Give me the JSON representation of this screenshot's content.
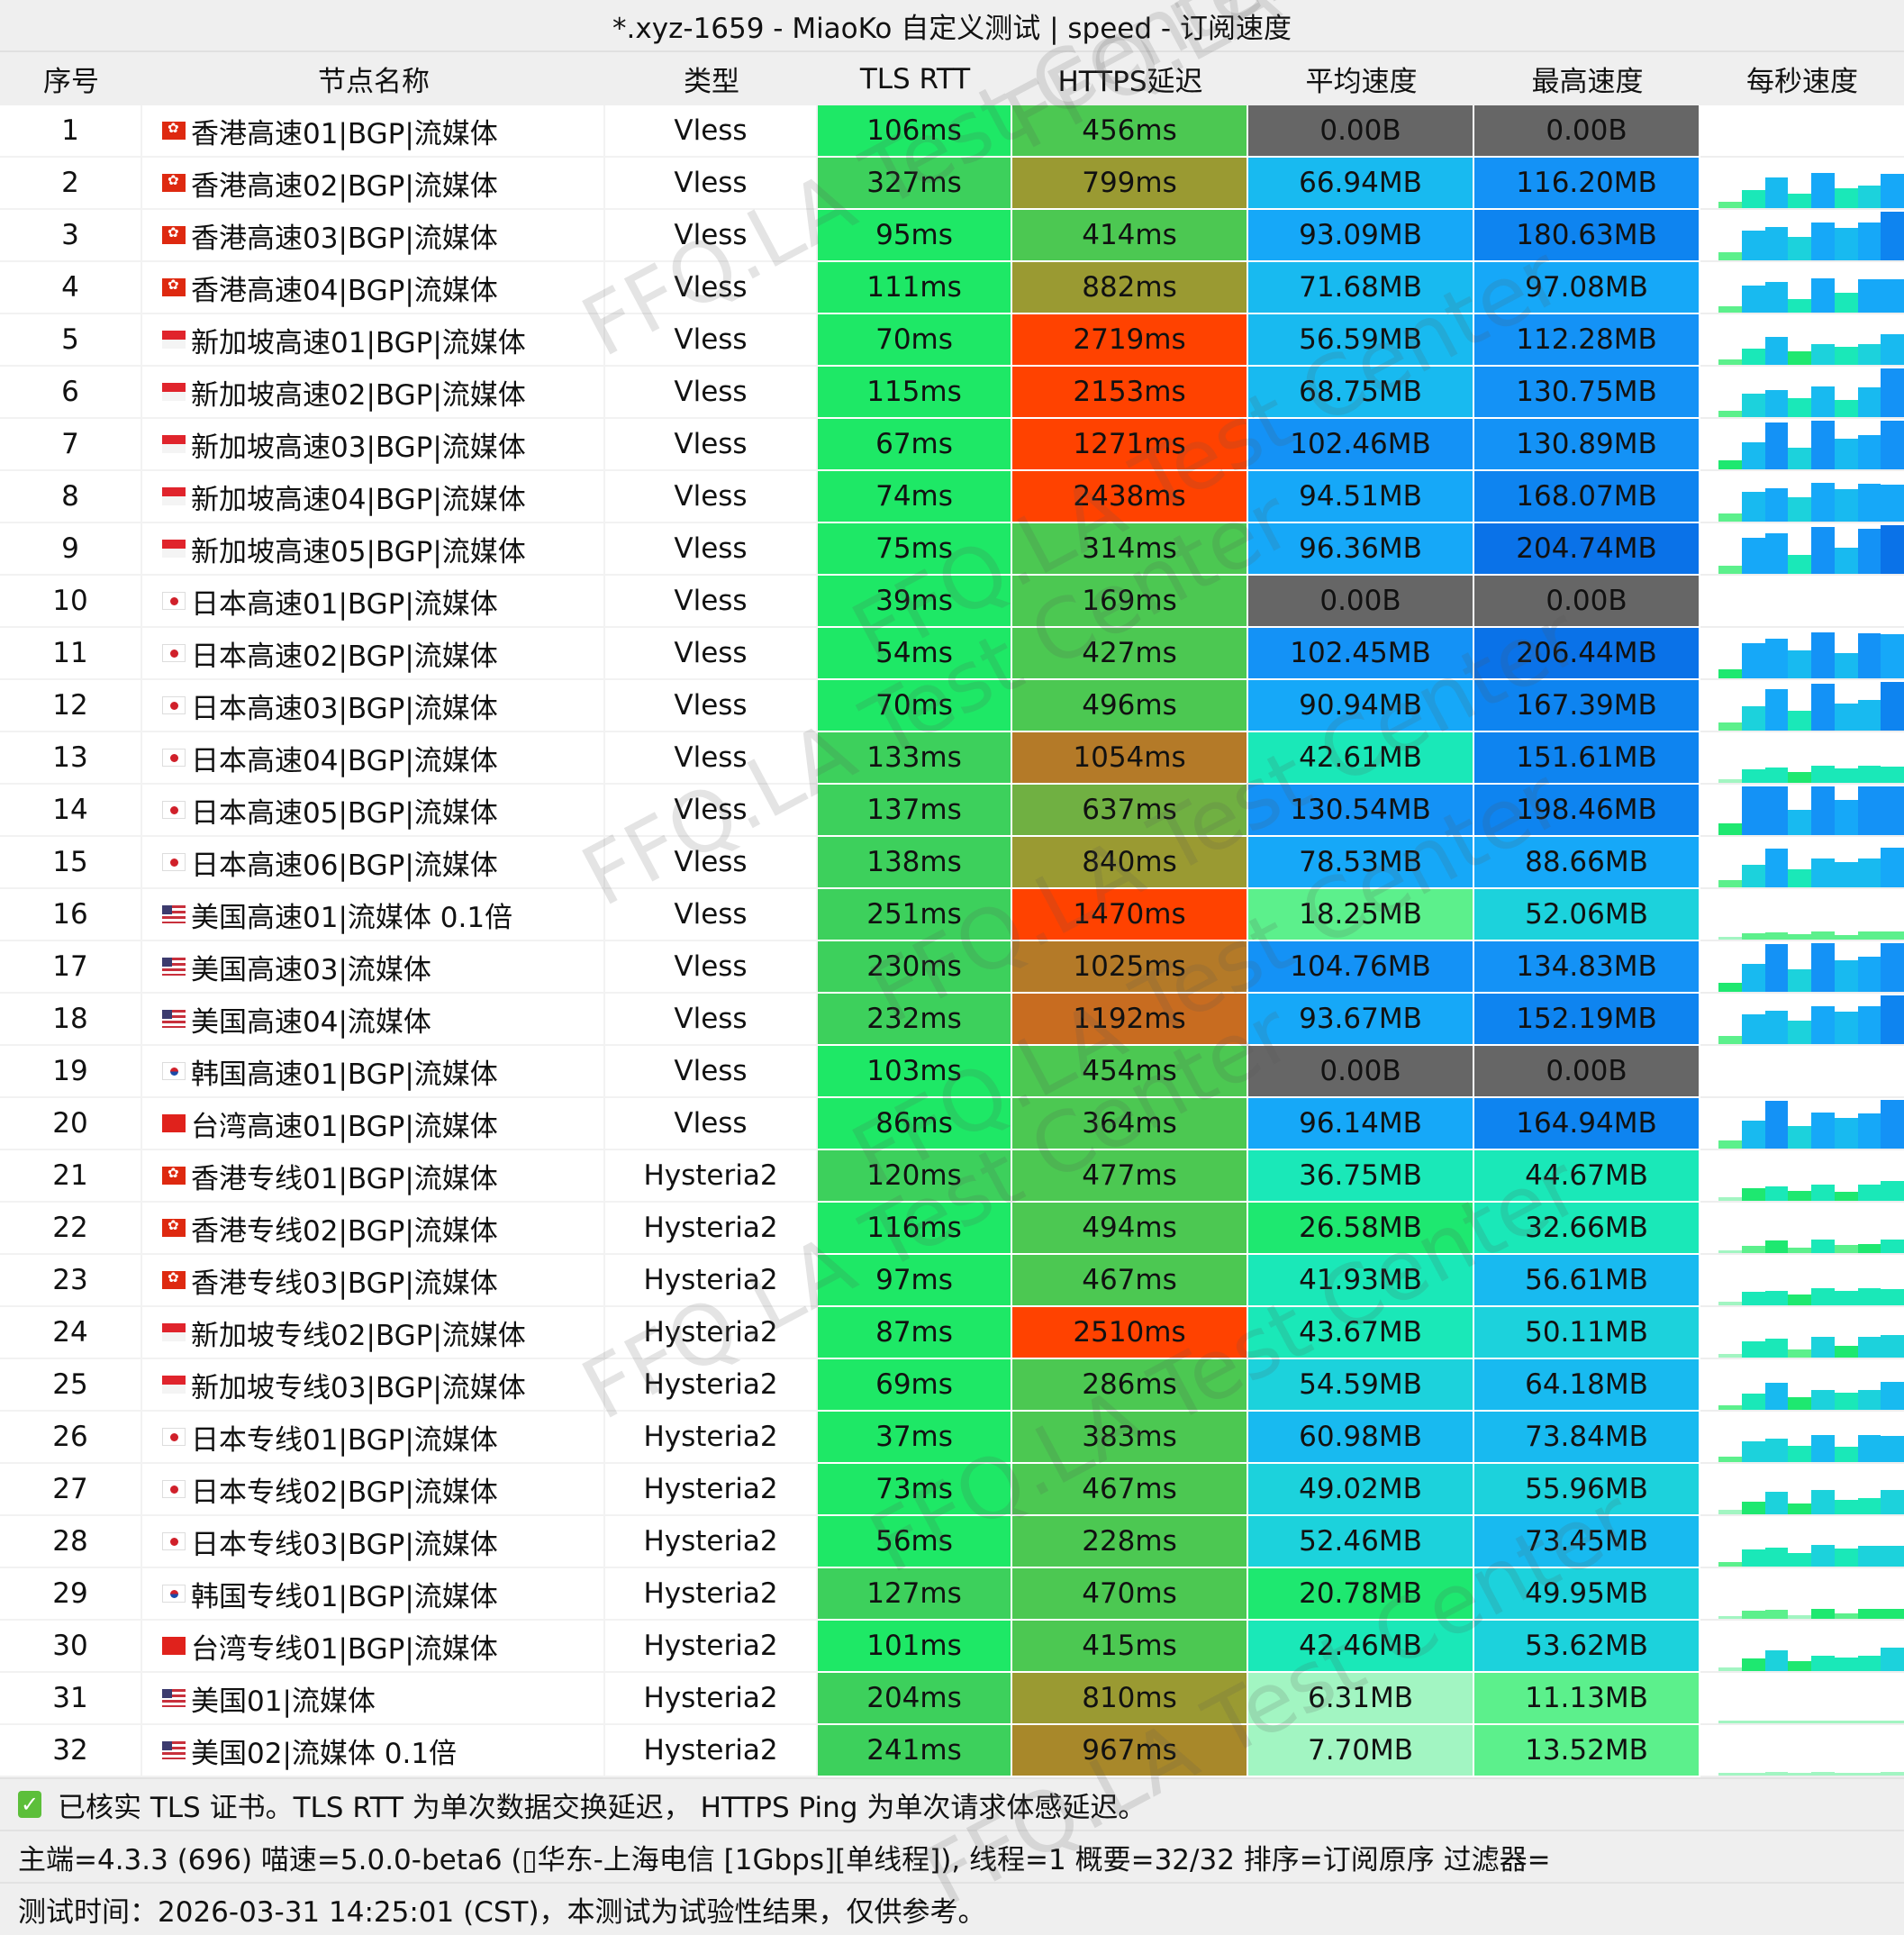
{
  "window": {
    "title": "*.xyz-1659 - MiaoKo 自定义测试 | speed - 订阅速度"
  },
  "columns": [
    "序号",
    "节点名称",
    "类型",
    "TLS RTT",
    "HTTPS延迟",
    "平均速度",
    "最高速度",
    "每秒速度"
  ],
  "rows": [
    {
      "id": "1",
      "flag": "hk",
      "name": "香港高速01|BGP|流媒体",
      "type": "Vless",
      "tls": "106ms",
      "https": "456ms",
      "avg": "0.00B",
      "max": "0.00B"
    },
    {
      "id": "2",
      "flag": "hk",
      "name": "香港高速02|BGP|流媒体",
      "type": "Vless",
      "tls": "327ms",
      "https": "799ms",
      "avg": "66.94MB",
      "max": "116.20MB"
    },
    {
      "id": "3",
      "flag": "hk",
      "name": "香港高速03|BGP|流媒体",
      "type": "Vless",
      "tls": "95ms",
      "https": "414ms",
      "avg": "93.09MB",
      "max": "180.63MB"
    },
    {
      "id": "4",
      "flag": "hk",
      "name": "香港高速04|BGP|流媒体",
      "type": "Vless",
      "tls": "111ms",
      "https": "882ms",
      "avg": "71.68MB",
      "max": "97.08MB"
    },
    {
      "id": "5",
      "flag": "sg",
      "name": "新加坡高速01|BGP|流媒体",
      "type": "Vless",
      "tls": "70ms",
      "https": "2719ms",
      "avg": "56.59MB",
      "max": "112.28MB"
    },
    {
      "id": "6",
      "flag": "sg",
      "name": "新加坡高速02|BGP|流媒体",
      "type": "Vless",
      "tls": "115ms",
      "https": "2153ms",
      "avg": "68.75MB",
      "max": "130.75MB"
    },
    {
      "id": "7",
      "flag": "sg",
      "name": "新加坡高速03|BGP|流媒体",
      "type": "Vless",
      "tls": "67ms",
      "https": "1271ms",
      "avg": "102.46MB",
      "max": "130.89MB"
    },
    {
      "id": "8",
      "flag": "sg",
      "name": "新加坡高速04|BGP|流媒体",
      "type": "Vless",
      "tls": "74ms",
      "https": "2438ms",
      "avg": "94.51MB",
      "max": "168.07MB"
    },
    {
      "id": "9",
      "flag": "sg",
      "name": "新加坡高速05|BGP|流媒体",
      "type": "Vless",
      "tls": "75ms",
      "https": "314ms",
      "avg": "96.36MB",
      "max": "204.74MB"
    },
    {
      "id": "10",
      "flag": "jp",
      "name": "日本高速01|BGP|流媒体",
      "type": "Vless",
      "tls": "39ms",
      "https": "169ms",
      "avg": "0.00B",
      "max": "0.00B"
    },
    {
      "id": "11",
      "flag": "jp",
      "name": "日本高速02|BGP|流媒体",
      "type": "Vless",
      "tls": "54ms",
      "https": "427ms",
      "avg": "102.45MB",
      "max": "206.44MB"
    },
    {
      "id": "12",
      "flag": "jp",
      "name": "日本高速03|BGP|流媒体",
      "type": "Vless",
      "tls": "70ms",
      "https": "496ms",
      "avg": "90.94MB",
      "max": "167.39MB"
    },
    {
      "id": "13",
      "flag": "jp",
      "name": "日本高速04|BGP|流媒体",
      "type": "Vless",
      "tls": "133ms",
      "https": "1054ms",
      "avg": "42.61MB",
      "max": "151.61MB"
    },
    {
      "id": "14",
      "flag": "jp",
      "name": "日本高速05|BGP|流媒体",
      "type": "Vless",
      "tls": "137ms",
      "https": "637ms",
      "avg": "130.54MB",
      "max": "198.46MB"
    },
    {
      "id": "15",
      "flag": "jp",
      "name": "日本高速06|BGP|流媒体",
      "type": "Vless",
      "tls": "138ms",
      "https": "840ms",
      "avg": "78.53MB",
      "max": "88.66MB"
    },
    {
      "id": "16",
      "flag": "us",
      "name": "美国高速01|流媒体 0.1倍",
      "type": "Vless",
      "tls": "251ms",
      "https": "1470ms",
      "avg": "18.25MB",
      "max": "52.06MB"
    },
    {
      "id": "17",
      "flag": "us",
      "name": "美国高速03|流媒体",
      "type": "Vless",
      "tls": "230ms",
      "https": "1025ms",
      "avg": "104.76MB",
      "max": "134.83MB"
    },
    {
      "id": "18",
      "flag": "us",
      "name": "美国高速04|流媒体",
      "type": "Vless",
      "tls": "232ms",
      "https": "1192ms",
      "avg": "93.67MB",
      "max": "152.19MB"
    },
    {
      "id": "19",
      "flag": "kr",
      "name": "韩国高速01|BGP|流媒体",
      "type": "Vless",
      "tls": "103ms",
      "https": "454ms",
      "avg": "0.00B",
      "max": "0.00B"
    },
    {
      "id": "20",
      "flag": "cn",
      "name": "台湾高速01|BGP|流媒体",
      "type": "Vless",
      "tls": "86ms",
      "https": "364ms",
      "avg": "96.14MB",
      "max": "164.94MB"
    },
    {
      "id": "21",
      "flag": "hk",
      "name": "香港专线01|BGP|流媒体",
      "type": "Hysteria2",
      "tls": "120ms",
      "https": "477ms",
      "avg": "36.75MB",
      "max": "44.67MB"
    },
    {
      "id": "22",
      "flag": "hk",
      "name": "香港专线02|BGP|流媒体",
      "type": "Hysteria2",
      "tls": "116ms",
      "https": "494ms",
      "avg": "26.58MB",
      "max": "32.66MB"
    },
    {
      "id": "23",
      "flag": "hk",
      "name": "香港专线03|BGP|流媒体",
      "type": "Hysteria2",
      "tls": "97ms",
      "https": "467ms",
      "avg": "41.93MB",
      "max": "56.61MB"
    },
    {
      "id": "24",
      "flag": "sg",
      "name": "新加坡专线02|BGP|流媒体",
      "type": "Hysteria2",
      "tls": "87ms",
      "https": "2510ms",
      "avg": "43.67MB",
      "max": "50.11MB"
    },
    {
      "id": "25",
      "flag": "sg",
      "name": "新加坡专线03|BGP|流媒体",
      "type": "Hysteria2",
      "tls": "69ms",
      "https": "286ms",
      "avg": "54.59MB",
      "max": "64.18MB"
    },
    {
      "id": "26",
      "flag": "jp",
      "name": "日本专线01|BGP|流媒体",
      "type": "Hysteria2",
      "tls": "37ms",
      "https": "383ms",
      "avg": "60.98MB",
      "max": "73.84MB"
    },
    {
      "id": "27",
      "flag": "jp",
      "name": "日本专线02|BGP|流媒体",
      "type": "Hysteria2",
      "tls": "73ms",
      "https": "467ms",
      "avg": "49.02MB",
      "max": "55.96MB"
    },
    {
      "id": "28",
      "flag": "jp",
      "name": "日本专线03|BGP|流媒体",
      "type": "Hysteria2",
      "tls": "56ms",
      "https": "228ms",
      "avg": "52.46MB",
      "max": "73.45MB"
    },
    {
      "id": "29",
      "flag": "kr",
      "name": "韩国专线01|BGP|流媒体",
      "type": "Hysteria2",
      "tls": "127ms",
      "https": "470ms",
      "avg": "20.78MB",
      "max": "49.95MB"
    },
    {
      "id": "30",
      "flag": "cn",
      "name": "台湾专线01|BGP|流媒体",
      "type": "Hysteria2",
      "tls": "101ms",
      "https": "415ms",
      "avg": "42.46MB",
      "max": "53.62MB"
    },
    {
      "id": "31",
      "flag": "us",
      "name": "美国01|流媒体",
      "type": "Hysteria2",
      "tls": "204ms",
      "https": "810ms",
      "avg": "6.31MB",
      "max": "11.13MB"
    },
    {
      "id": "32",
      "flag": "us",
      "name": "美国02|流媒体 0.1倍",
      "type": "Hysteria2",
      "tls": "241ms",
      "https": "967ms",
      "avg": "7.70MB",
      "max": "13.52MB"
    }
  ],
  "footer": {
    "check_icon": "checkbox-checked-icon",
    "note": "已核实 TLS 证书。TLS RTT 为单次数据交换延迟， HTTPS Ping 为单次请求体感延迟。",
    "info": "主端=4.3.3 (696) 喵速=5.0.0-beta6 (▯华东-上海电信 [1Gbps][单线程]), 线程=1 概要=32/32 排序=订阅原序 过滤器=",
    "time": "测试时间：2026-03-31 14:25:01 (CST)，本测试为试验性结果，仅供参考。"
  },
  "watermark": "FFQ.LA Test Center",
  "colors": {
    "header_bg": "#efefef",
    "zero_speed": "#666666",
    "high_latency": "#ff4200"
  }
}
